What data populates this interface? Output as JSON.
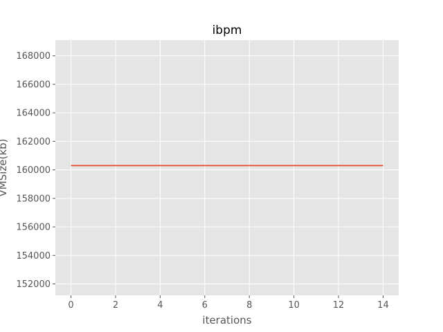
{
  "chart_data": {
    "type": "line",
    "title": "ibpm",
    "xlabel": "iterations",
    "ylabel": "VMSize(kb)",
    "xlim": [
      -0.7,
      14.7
    ],
    "ylim": [
      151200,
      169100
    ],
    "x_ticks": [
      0,
      2,
      4,
      6,
      8,
      10,
      12,
      14
    ],
    "y_ticks": [
      152000,
      154000,
      156000,
      158000,
      160000,
      162000,
      164000,
      166000,
      168000
    ],
    "grid": true,
    "series": [
      {
        "x": [
          0,
          1,
          2,
          3,
          4,
          5,
          6,
          7,
          8,
          9,
          10,
          11,
          12,
          13,
          14
        ],
        "values": [
          160300,
          160300,
          160300,
          160300,
          160300,
          160300,
          160300,
          160300,
          160300,
          160300,
          160300,
          160300,
          160300,
          160300,
          160300
        ],
        "color": "#E24A33"
      }
    ]
  }
}
